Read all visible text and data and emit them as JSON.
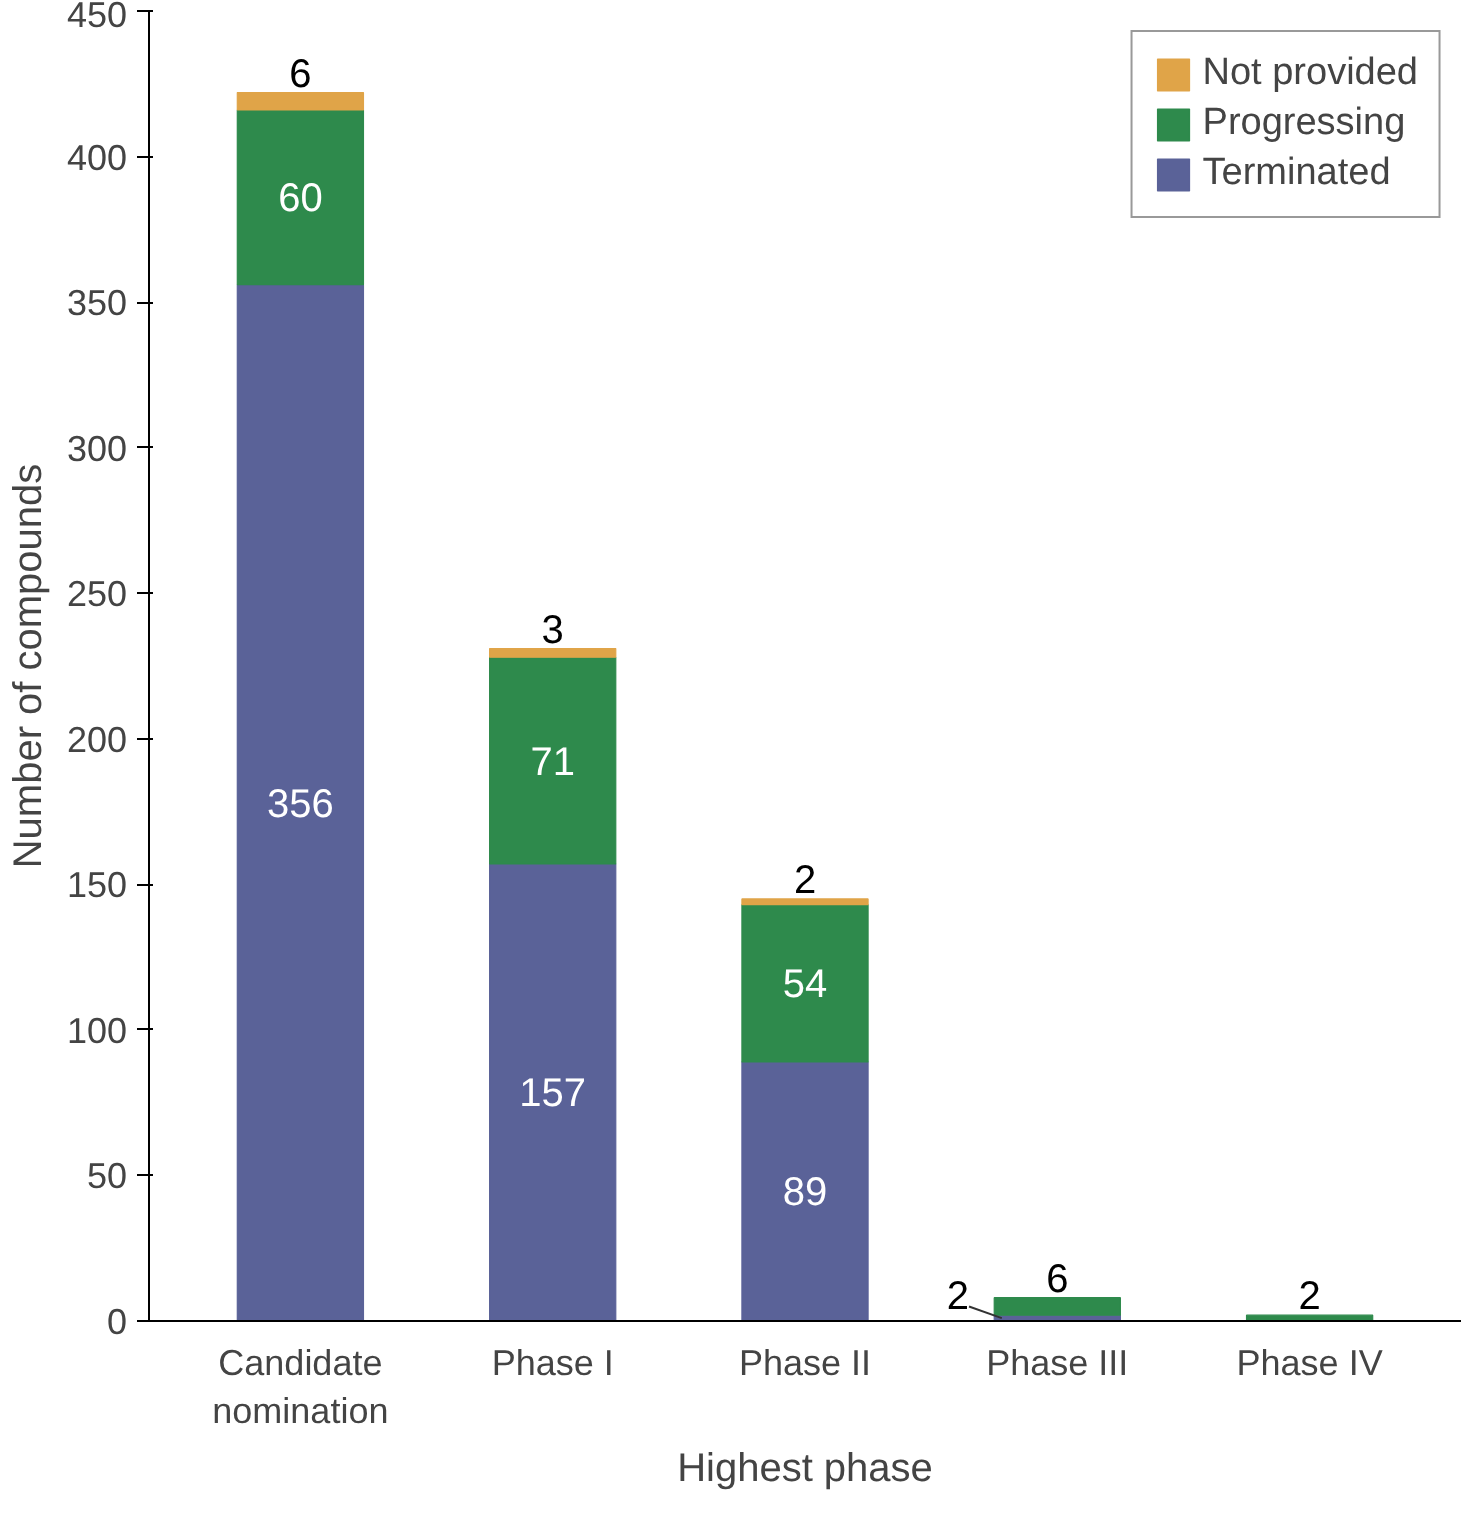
{
  "chart_data": {
    "type": "bar",
    "stacked": true,
    "xlabel": "Highest phase",
    "ylabel": "Number of compounds",
    "categories": [
      "Candidate\nnomination",
      "Phase I",
      "Phase II",
      "Phase III",
      "Phase IV"
    ],
    "series": [
      {
        "name": "Terminated",
        "color": "#5a6298",
        "values": [
          356,
          157,
          89,
          2,
          0
        ],
        "value_labels": [
          "356",
          "157",
          "89",
          "2",
          null
        ]
      },
      {
        "name": "Progressing",
        "color": "#2e8a4c",
        "values": [
          60,
          71,
          54,
          6,
          2
        ],
        "value_labels": [
          "60",
          "71",
          "54",
          "6",
          "2"
        ]
      },
      {
        "name": "Not provided",
        "color": "#e0a448",
        "values": [
          6,
          3,
          2,
          0,
          0
        ],
        "value_labels": [
          "6",
          "3",
          "2",
          null,
          null
        ]
      }
    ],
    "ylim": [
      0,
      450
    ],
    "yticks": [
      0,
      50,
      100,
      150,
      200,
      250,
      300,
      350,
      400,
      450
    ],
    "grid": false,
    "legend": "top right"
  }
}
